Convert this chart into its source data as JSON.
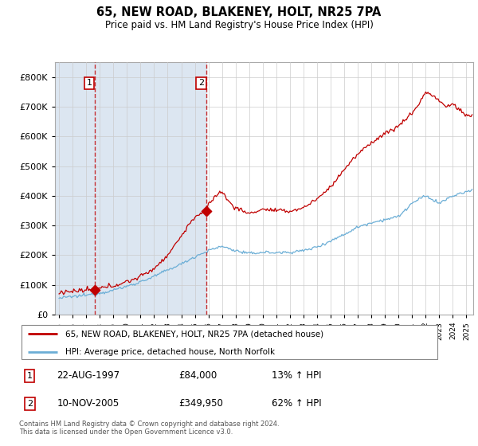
{
  "title": "65, NEW ROAD, BLAKENEY, HOLT, NR25 7PA",
  "subtitle": "Price paid vs. HM Land Registry's House Price Index (HPI)",
  "footer": "Contains HM Land Registry data © Crown copyright and database right 2024.\nThis data is licensed under the Open Government Licence v3.0.",
  "legend_line1": "65, NEW ROAD, BLAKENEY, HOLT, NR25 7PA (detached house)",
  "legend_line2": "HPI: Average price, detached house, North Norfolk",
  "sale1_date": "22-AUG-1997",
  "sale1_price": 84000,
  "sale1_label": "£84,000",
  "sale1_hpi": "13% ↑ HPI",
  "sale2_date": "10-NOV-2005",
  "sale2_price": 349950,
  "sale2_label": "£349,950",
  "sale2_hpi": "62% ↑ HPI",
  "hpi_color": "#6baed6",
  "price_color": "#c00000",
  "vline_color": "#c00000",
  "span_color": "#dce6f1",
  "plot_bg": "#ffffff",
  "grid_color": "#cccccc",
  "ylim": [
    0,
    850000
  ],
  "yticks": [
    0,
    100000,
    200000,
    300000,
    400000,
    500000,
    600000,
    700000,
    800000
  ],
  "xmin": 1994.7,
  "xmax": 2025.5,
  "sale1_x": 1997.622,
  "sale2_x": 2005.872
}
